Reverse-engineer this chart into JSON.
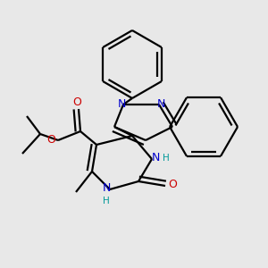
{
  "bg_color": "#e8e8e8",
  "bond_color": "#000000",
  "bond_width": 1.6,
  "dbo": 0.018,
  "fig_w": 3.0,
  "fig_h": 3.0,
  "dpi": 100,
  "xlim": [
    0,
    300
  ],
  "ylim": [
    0,
    300
  ]
}
